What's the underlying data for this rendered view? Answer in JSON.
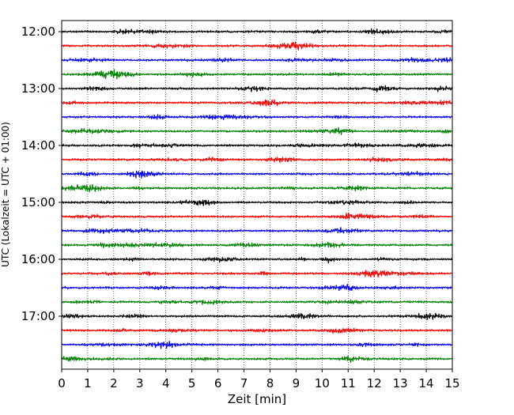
{
  "chart_data": {
    "type": "line",
    "title": "",
    "xlabel": "Zeit  [min]",
    "ylabel": "UTC (Lokalzeit = UTC + 01:00)",
    "xlim": [
      0,
      15
    ],
    "x_ticks": [
      0,
      1,
      2,
      3,
      4,
      5,
      6,
      7,
      8,
      9,
      10,
      11,
      12,
      13,
      14,
      15
    ],
    "y_tick_labels": [
      "12:00",
      "13:00",
      "14:00",
      "15:00",
      "16:00",
      "17:00"
    ],
    "grid": "vertical dotted",
    "trace_count": 24,
    "trace_interval_minutes": 15,
    "trace_colors": [
      "#000000",
      "#ff0000",
      "#0000ff",
      "#008000"
    ],
    "series": [
      {
        "start_utc": "12:00",
        "color": "#000000"
      },
      {
        "start_utc": "12:15",
        "color": "#ff0000"
      },
      {
        "start_utc": "12:30",
        "color": "#0000ff"
      },
      {
        "start_utc": "12:45",
        "color": "#008000"
      },
      {
        "start_utc": "13:00",
        "color": "#000000"
      },
      {
        "start_utc": "13:15",
        "color": "#ff0000"
      },
      {
        "start_utc": "13:30",
        "color": "#0000ff"
      },
      {
        "start_utc": "13:45",
        "color": "#008000"
      },
      {
        "start_utc": "14:00",
        "color": "#000000"
      },
      {
        "start_utc": "14:15",
        "color": "#ff0000"
      },
      {
        "start_utc": "14:30",
        "color": "#0000ff"
      },
      {
        "start_utc": "14:45",
        "color": "#008000"
      },
      {
        "start_utc": "15:00",
        "color": "#000000"
      },
      {
        "start_utc": "15:15",
        "color": "#ff0000"
      },
      {
        "start_utc": "15:30",
        "color": "#0000ff"
      },
      {
        "start_utc": "15:45",
        "color": "#008000"
      },
      {
        "start_utc": "16:00",
        "color": "#000000"
      },
      {
        "start_utc": "16:15",
        "color": "#ff0000"
      },
      {
        "start_utc": "16:30",
        "color": "#0000ff"
      },
      {
        "start_utc": "16:45",
        "color": "#008000"
      },
      {
        "start_utc": "17:00",
        "color": "#000000"
      },
      {
        "start_utc": "17:15",
        "color": "#ff0000"
      },
      {
        "start_utc": "17:30",
        "color": "#0000ff"
      },
      {
        "start_utc": "17:45",
        "color": "#008000"
      }
    ]
  }
}
